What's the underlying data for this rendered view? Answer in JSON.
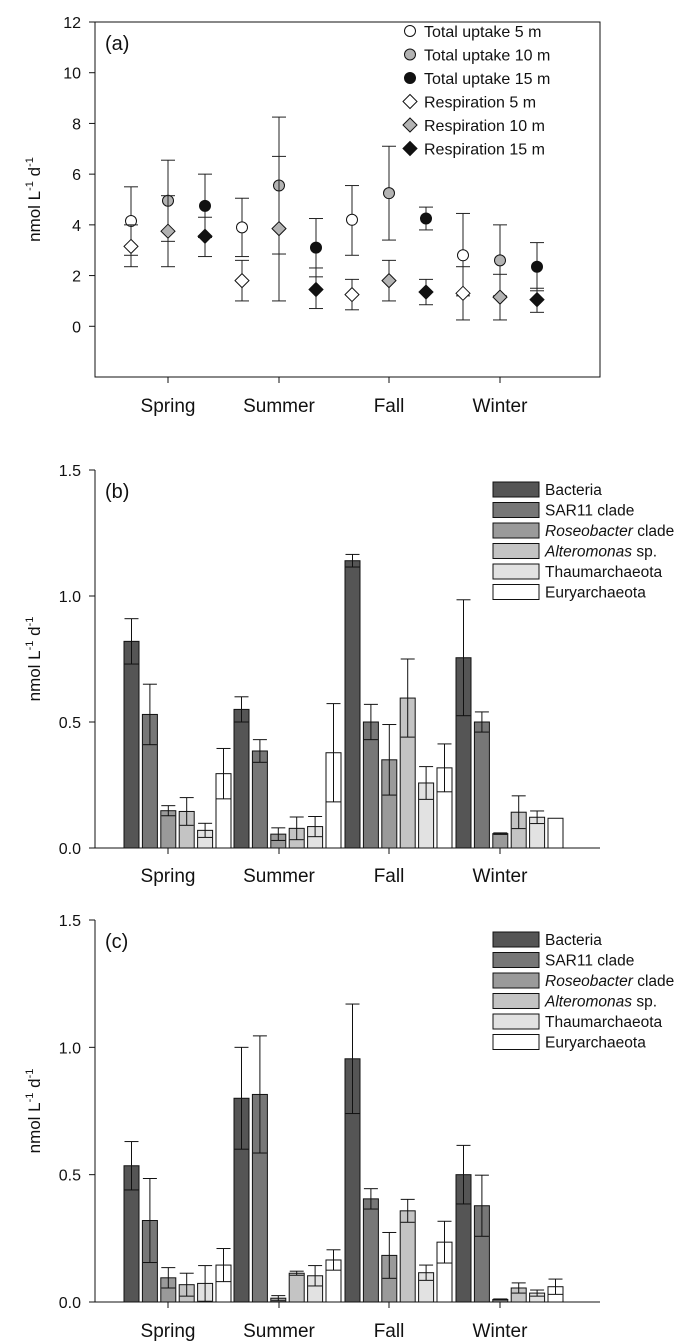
{
  "chart_data": [
    {
      "panel": "(a)",
      "type": "scatter",
      "ylabel": "nmol L-1 d-1",
      "ylabel_parts": [
        "nmol L",
        "-1",
        " d",
        "-1"
      ],
      "ylim": [
        -2,
        12
      ],
      "yticks": [
        0,
        2,
        4,
        6,
        8,
        10,
        12
      ],
      "categories": [
        "Spring",
        "Summer",
        "Fall",
        "Winter"
      ],
      "legend_position": "top-right",
      "series": [
        {
          "name": "Total uptake 5 m",
          "marker": "circle",
          "fill": "#ffffff",
          "values": [
            4.15,
            3.9,
            4.2,
            2.8
          ],
          "err_upper": [
            5.5,
            5.05,
            5.55,
            4.45
          ],
          "err_lower": [
            2.8,
            2.75,
            2.8,
            1.2
          ]
        },
        {
          "name": "Total uptake 10 m",
          "marker": "circle",
          "fill": "#b3b3b3",
          "values": [
            4.95,
            5.55,
            5.25,
            2.6
          ],
          "err_upper": [
            6.55,
            8.25,
            7.1,
            4.0
          ],
          "err_lower": [
            3.35,
            2.85,
            3.4,
            1.2
          ]
        },
        {
          "name": "Total uptake 15 m",
          "marker": "circle",
          "fill": "#111111",
          "values": [
            4.75,
            3.1,
            4.25,
            2.35
          ],
          "err_upper": [
            6.0,
            4.25,
            4.7,
            3.3
          ],
          "err_lower": [
            3.5,
            1.95,
            3.8,
            1.4
          ]
        },
        {
          "name": "Respiration 5 m",
          "marker": "diamond",
          "fill": "#ffffff",
          "values": [
            3.15,
            1.8,
            1.25,
            1.3
          ],
          "err_upper": [
            4.0,
            2.6,
            1.85,
            2.35
          ],
          "err_lower": [
            2.35,
            1.0,
            0.65,
            0.25
          ]
        },
        {
          "name": "Respiration 10 m",
          "marker": "diamond",
          "fill": "#b3b3b3",
          "values": [
            3.75,
            3.85,
            1.8,
            1.15
          ],
          "err_upper": [
            5.15,
            6.7,
            2.6,
            2.05
          ],
          "err_lower": [
            2.35,
            1.0,
            1.0,
            0.25
          ]
        },
        {
          "name": "Respiration 15 m",
          "marker": "diamond",
          "fill": "#111111",
          "values": [
            3.55,
            1.45,
            1.35,
            1.05
          ],
          "err_upper": [
            4.3,
            2.3,
            1.85,
            1.5
          ],
          "err_lower": [
            2.75,
            0.7,
            0.85,
            0.55
          ]
        }
      ]
    },
    {
      "panel": "(b)",
      "type": "bar",
      "ylabel": "nmol L-1 d-1",
      "ylabel_parts": [
        "nmol L",
        "-1",
        " d",
        "-1"
      ],
      "ylim": [
        0,
        1.5
      ],
      "yticks": [
        0.0,
        0.5,
        1.0,
        1.5
      ],
      "ytick_labels": [
        "0.0",
        "0.5",
        "1.0",
        "1.5"
      ],
      "categories": [
        "Spring",
        "Summer",
        "Fall",
        "Winter"
      ],
      "legend_position": "top-right",
      "series": [
        {
          "name": "Bacteria",
          "fill": "#555555",
          "values": [
            0.82,
            0.55,
            1.14,
            0.755
          ],
          "err": [
            0.09,
            0.05,
            0.025,
            0.23
          ]
        },
        {
          "name": "SAR11 clade",
          "fill": "#777777",
          "values": [
            0.53,
            0.385,
            0.5,
            0.5
          ],
          "err": [
            0.12,
            0.045,
            0.07,
            0.04
          ]
        },
        {
          "name": "Roseobacter clade",
          "fill": "#9a9a9a",
          "values": [
            0.148,
            0.055,
            0.35,
            0.057
          ],
          "err": [
            0.02,
            0.025,
            0.14,
            0.003
          ]
        },
        {
          "name": "Alteromonas sp.",
          "fill": "#c4c4c4",
          "values": [
            0.145,
            0.078,
            0.595,
            0.142
          ],
          "err": [
            0.055,
            0.045,
            0.155,
            0.065
          ]
        },
        {
          "name": "Thaumarchaeota",
          "fill": "#e2e2e2",
          "values": [
            0.07,
            0.085,
            0.258,
            0.122
          ],
          "err": [
            0.028,
            0.04,
            0.065,
            0.025
          ]
        },
        {
          "name": "Euryarchaeota",
          "fill": "#ffffff",
          "values": [
            0.295,
            0.378,
            0.318,
            0.118
          ],
          "err": [
            0.1,
            0.195,
            0.095,
            0.0
          ]
        }
      ]
    },
    {
      "panel": "(c)",
      "type": "bar",
      "ylabel": "nmol L-1 d-1",
      "ylabel_parts": [
        "nmol L",
        "-1",
        " d",
        "-1"
      ],
      "ylim": [
        0,
        1.5
      ],
      "yticks": [
        0.0,
        0.5,
        1.0,
        1.5
      ],
      "ytick_labels": [
        "0.0",
        "0.5",
        "1.0",
        "1.5"
      ],
      "categories": [
        "Spring",
        "Summer",
        "Fall",
        "Winter"
      ],
      "legend_position": "top-right",
      "series": [
        {
          "name": "Bacteria",
          "fill": "#555555",
          "values": [
            0.535,
            0.8,
            0.955,
            0.5
          ],
          "err": [
            0.095,
            0.2,
            0.215,
            0.115
          ]
        },
        {
          "name": "SAR11 clade",
          "fill": "#777777",
          "values": [
            0.32,
            0.815,
            0.405,
            0.378
          ],
          "err": [
            0.165,
            0.23,
            0.04,
            0.12
          ]
        },
        {
          "name": "Roseobacter clade",
          "fill": "#9a9a9a",
          "values": [
            0.095,
            0.015,
            0.183,
            0.01
          ],
          "err": [
            0.04,
            0.01,
            0.09,
            0.002
          ]
        },
        {
          "name": "Alteromonas sp.",
          "fill": "#c4c4c4",
          "values": [
            0.068,
            0.113,
            0.358,
            0.055
          ],
          "err": [
            0.045,
            0.008,
            0.045,
            0.02
          ]
        },
        {
          "name": "Thaumarchaeota",
          "fill": "#e2e2e2",
          "values": [
            0.073,
            0.103,
            0.115,
            0.035
          ],
          "err": [
            0.07,
            0.04,
            0.03,
            0.012
          ]
        },
        {
          "name": "Euryarchaeota",
          "fill": "#ffffff",
          "values": [
            0.145,
            0.165,
            0.235,
            0.06
          ],
          "err": [
            0.065,
            0.04,
            0.082,
            0.03
          ]
        }
      ]
    }
  ]
}
